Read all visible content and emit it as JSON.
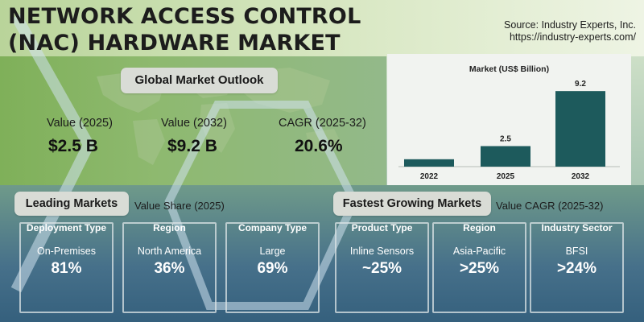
{
  "title_line1": "NETWORK ACCESS CONTROL",
  "title_line2": "(NAC) HARDWARE MARKET",
  "source_line1": "Source: Industry Experts, Inc.",
  "source_line2": "https://industry-experts.com/",
  "outlook": {
    "heading": "Global Market Outlook",
    "metrics": [
      {
        "label": "Value (2025)",
        "value": "$2.5 B"
      },
      {
        "label": "Value (2032)",
        "value": "$9.2 B"
      },
      {
        "label": "CAGR (2025-32)",
        "value": "20.6%"
      }
    ]
  },
  "chart_data": {
    "type": "bar",
    "title": "Market (US$ Billion)",
    "categories": [
      "2022",
      "2025",
      "2032"
    ],
    "values": [
      0.9,
      2.5,
      9.2
    ],
    "value_labels": [
      "",
      "2.5",
      "9.2"
    ],
    "ylim": [
      0,
      10
    ],
    "bar_color": "#1d5a5c",
    "grid": false
  },
  "leading": {
    "heading": "Leading Markets",
    "note": "Value Share (2025)",
    "cards": [
      {
        "title": "Deployment Type",
        "name": "On-Premises",
        "value": "81%"
      },
      {
        "title": "Region",
        "name": "North America",
        "value": "36%"
      },
      {
        "title": "Company Type",
        "name": "Large",
        "value": "69%"
      }
    ]
  },
  "fastest": {
    "heading": "Fastest Growing Markets",
    "note": "Value CAGR (2025-32)",
    "cards": [
      {
        "title": "Product Type",
        "name": "Inline Sensors",
        "value": "~25%"
      },
      {
        "title": "Region",
        "name": "Asia-Pacific",
        "value": ">25%"
      },
      {
        "title": "Industry Sector",
        "name": "BFSI",
        "value": ">24%"
      }
    ]
  }
}
